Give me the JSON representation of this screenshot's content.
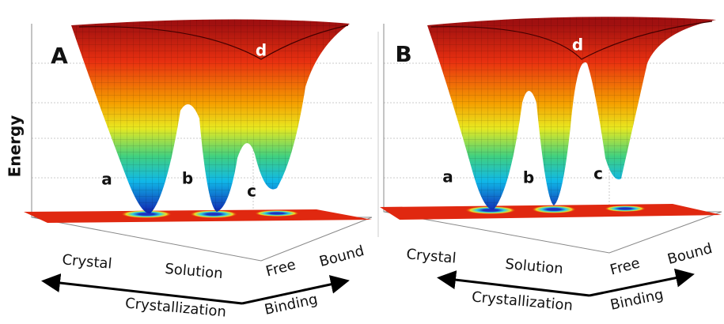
{
  "y_axis_label": "Energy",
  "panels": [
    {
      "label": "A",
      "wells": [
        "a",
        "b",
        "c"
      ],
      "saddle": "d",
      "axis_labels": {
        "crystal": "Crystal",
        "solution": "Solution",
        "free": "Free",
        "bound": "Bound",
        "crystallization": "Crystallization",
        "binding": "Binding"
      }
    },
    {
      "label": "B",
      "wells": [
        "a",
        "b",
        "c"
      ],
      "saddle": "d",
      "axis_labels": {
        "crystal": "Crystal",
        "solution": "Solution",
        "free": "Free",
        "bound": "Bound",
        "crystallization": "Crystallization",
        "binding": "Binding"
      }
    }
  ]
}
